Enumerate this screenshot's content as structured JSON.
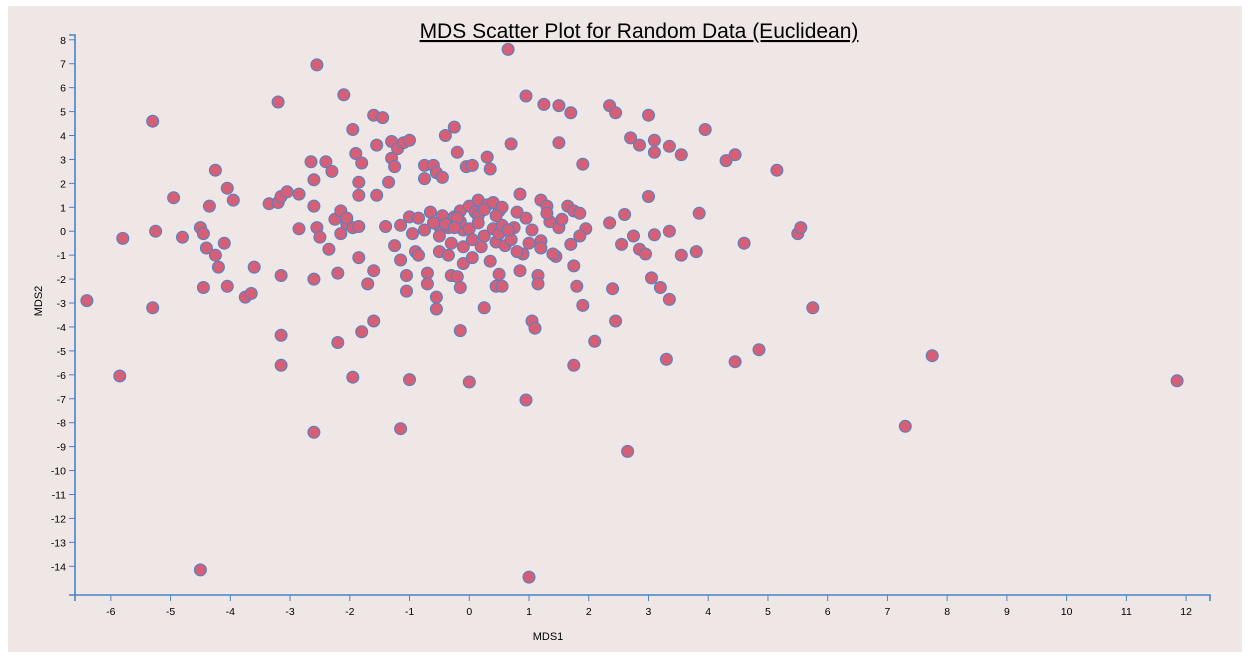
{
  "chart_data": {
    "type": "scatter",
    "title": "MDS Scatter Plot for Random Data (Euclidean)",
    "xlabel": "MDS1",
    "ylabel": "MDS2",
    "xlim": [
      -6.6,
      12.4
    ],
    "ylim": [
      -15.2,
      8.2
    ],
    "xticks": [
      "-6",
      "-5",
      "-4",
      "-3",
      "-2",
      "-1",
      "0",
      "1",
      "2",
      "3",
      "4",
      "5",
      "6",
      "7",
      "8",
      "9",
      "10",
      "11",
      "12"
    ],
    "yticks": [
      "8",
      "7",
      "6",
      "5",
      "4",
      "3",
      "2",
      "1",
      "0",
      "-1",
      "-2",
      "-3",
      "-4",
      "-5",
      "-6",
      "-7",
      "-8",
      "-9",
      "-10",
      "-11",
      "-12",
      "-13",
      "-14"
    ],
    "grid": false,
    "colors": {
      "point_fill": "#d65f78",
      "point_stroke": "#4a84c6",
      "axis": "#4a84c6",
      "background": "#efe6e6"
    },
    "points": [
      [
        -6.4,
        -2.9
      ],
      [
        -5.8,
        -0.3
      ],
      [
        -5.85,
        -6.05
      ],
      [
        -5.3,
        4.6
      ],
      [
        -5.25,
        0.0
      ],
      [
        -5.3,
        -3.2
      ],
      [
        -4.95,
        1.4
      ],
      [
        -4.8,
        -0.25
      ],
      [
        -4.5,
        0.15
      ],
      [
        -4.45,
        -0.1
      ],
      [
        -4.4,
        -0.7
      ],
      [
        -4.35,
        1.05
      ],
      [
        -4.25,
        2.55
      ],
      [
        -4.2,
        -1.5
      ],
      [
        -4.1,
        -0.5
      ],
      [
        -4.05,
        1.8
      ],
      [
        -3.95,
        1.3
      ],
      [
        -4.25,
        -1.0
      ],
      [
        -4.5,
        -14.15
      ],
      [
        -4.45,
        -2.35
      ],
      [
        -4.05,
        -2.3
      ],
      [
        -3.75,
        -2.75
      ],
      [
        -3.65,
        -2.6
      ],
      [
        -3.6,
        -1.5
      ],
      [
        -3.35,
        1.15
      ],
      [
        -3.2,
        1.2
      ],
      [
        -3.15,
        1.45
      ],
      [
        -3.05,
        1.65
      ],
      [
        -2.85,
        1.55
      ],
      [
        -3.2,
        5.4
      ],
      [
        -3.15,
        -1.85
      ],
      [
        -3.15,
        -4.35
      ],
      [
        -3.15,
        -5.6
      ],
      [
        -2.85,
        0.1
      ],
      [
        -2.65,
        2.9
      ],
      [
        -2.6,
        2.15
      ],
      [
        -2.6,
        1.05
      ],
      [
        -2.55,
        0.15
      ],
      [
        -2.5,
        -0.25
      ],
      [
        -2.6,
        -2.0
      ],
      [
        -2.55,
        6.95
      ],
      [
        -2.4,
        2.9
      ],
      [
        -2.35,
        -0.75
      ],
      [
        -2.3,
        2.5
      ],
      [
        -2.25,
        0.5
      ],
      [
        -2.2,
        -1.75
      ],
      [
        -2.2,
        -4.65
      ],
      [
        -2.15,
        0.85
      ],
      [
        -2.1,
        5.7
      ],
      [
        -2.05,
        0.3
      ],
      [
        -1.95,
        4.25
      ],
      [
        -1.95,
        0.15
      ],
      [
        -1.9,
        3.25
      ],
      [
        -1.85,
        2.05
      ],
      [
        -1.8,
        2.85
      ],
      [
        -1.85,
        1.5
      ],
      [
        -1.85,
        0.2
      ],
      [
        -1.85,
        -1.1
      ],
      [
        -1.7,
        -2.2
      ],
      [
        -1.6,
        -1.65
      ],
      [
        -1.55,
        3.6
      ],
      [
        -1.6,
        4.85
      ],
      [
        -1.55,
        1.5
      ],
      [
        -1.45,
        4.75
      ],
      [
        -1.35,
        2.05
      ],
      [
        -1.3,
        3.05
      ],
      [
        -1.3,
        3.75
      ],
      [
        -1.25,
        2.7
      ],
      [
        -1.2,
        3.45
      ],
      [
        -1.15,
        0.25
      ],
      [
        -1.1,
        3.7
      ],
      [
        -1.0,
        3.8
      ],
      [
        -1.0,
        0.6
      ],
      [
        -0.95,
        -0.1
      ],
      [
        -0.9,
        -0.85
      ],
      [
        -0.85,
        0.55
      ],
      [
        -0.75,
        2.75
      ],
      [
        -0.75,
        2.2
      ],
      [
        -0.7,
        -1.75
      ],
      [
        -0.7,
        -2.2
      ],
      [
        -0.65,
        0.8
      ],
      [
        -0.6,
        2.75
      ],
      [
        -0.55,
        2.45
      ],
      [
        -0.5,
        0.2
      ],
      [
        -0.5,
        -0.2
      ],
      [
        -0.5,
        -0.85
      ],
      [
        -0.45,
        0.65
      ],
      [
        -0.45,
        2.25
      ],
      [
        -0.4,
        4.0
      ],
      [
        -0.35,
        0.15
      ],
      [
        -0.3,
        -0.5
      ],
      [
        -0.3,
        -1.85
      ],
      [
        -0.25,
        4.35
      ],
      [
        -0.25,
        0.6
      ],
      [
        -0.2,
        3.3
      ],
      [
        -0.2,
        -1.9
      ],
      [
        -0.15,
        0.85
      ],
      [
        -0.1,
        0.05
      ],
      [
        -0.1,
        -0.65
      ],
      [
        -0.1,
        -1.35
      ],
      [
        -0.05,
        2.7
      ],
      [
        0.0,
        1.05
      ],
      [
        0.0,
        0.1
      ],
      [
        0.05,
        2.75
      ],
      [
        0.05,
        -1.1
      ],
      [
        0.1,
        0.8
      ],
      [
        0.15,
        1.3
      ],
      [
        0.2,
        -0.65
      ],
      [
        0.3,
        3.1
      ],
      [
        0.3,
        1.1
      ],
      [
        0.35,
        2.6
      ],
      [
        0.4,
        0.1
      ],
      [
        0.45,
        -0.45
      ],
      [
        0.45,
        -2.3
      ],
      [
        0.5,
        0.85
      ],
      [
        0.5,
        -0.1
      ],
      [
        0.5,
        -1.8
      ],
      [
        0.55,
        -2.3
      ],
      [
        0.6,
        -0.6
      ],
      [
        0.65,
        7.6
      ],
      [
        0.7,
        3.65
      ],
      [
        0.75,
        0.15
      ],
      [
        0.8,
        0.8
      ],
      [
        0.85,
        1.55
      ],
      [
        0.85,
        -1.65
      ],
      [
        0.9,
        -0.95
      ],
      [
        0.95,
        5.65
      ],
      [
        1.0,
        -0.5
      ],
      [
        1.05,
        -3.75
      ],
      [
        1.1,
        -4.05
      ],
      [
        1.15,
        -1.85
      ],
      [
        1.2,
        1.3
      ],
      [
        1.2,
        -0.4
      ],
      [
        1.25,
        5.3
      ],
      [
        1.3,
        1.05
      ],
      [
        1.35,
        0.4
      ],
      [
        1.45,
        -1.05
      ],
      [
        1.5,
        3.7
      ],
      [
        1.5,
        5.25
      ],
      [
        1.5,
        0.15
      ],
      [
        1.65,
        1.05
      ],
      [
        1.7,
        4.95
      ],
      [
        1.7,
        -0.55
      ],
      [
        1.75,
        0.85
      ],
      [
        1.75,
        -1.45
      ],
      [
        1.8,
        -2.3
      ],
      [
        1.75,
        -5.6
      ],
      [
        1.85,
        0.75
      ],
      [
        1.9,
        2.8
      ],
      [
        1.95,
        0.1
      ],
      [
        1.9,
        -3.1
      ],
      [
        2.1,
        -4.6
      ],
      [
        2.35,
        5.25
      ],
      [
        2.45,
        4.95
      ],
      [
        2.35,
        0.35
      ],
      [
        2.4,
        -2.4
      ],
      [
        2.45,
        -3.75
      ],
      [
        2.55,
        -0.55
      ],
      [
        2.6,
        0.7
      ],
      [
        2.7,
        3.9
      ],
      [
        2.75,
        -0.2
      ],
      [
        2.85,
        3.6
      ],
      [
        2.85,
        -0.75
      ],
      [
        2.95,
        -0.95
      ],
      [
        3.0,
        4.85
      ],
      [
        3.0,
        1.45
      ],
      [
        3.05,
        -1.95
      ],
      [
        3.1,
        3.3
      ],
      [
        3.1,
        3.8
      ],
      [
        3.1,
        -0.15
      ],
      [
        3.2,
        -2.35
      ],
      [
        3.3,
        -5.35
      ],
      [
        3.35,
        3.55
      ],
      [
        3.35,
        0.0
      ],
      [
        3.35,
        -2.85
      ],
      [
        3.55,
        3.2
      ],
      [
        3.55,
        -1.0
      ],
      [
        3.8,
        -0.85
      ],
      [
        3.85,
        0.75
      ],
      [
        3.95,
        4.25
      ],
      [
        4.3,
        2.95
      ],
      [
        4.45,
        3.2
      ],
      [
        4.45,
        -5.45
      ],
      [
        4.6,
        -0.5
      ],
      [
        4.85,
        -4.95
      ],
      [
        5.15,
        2.55
      ],
      [
        5.5,
        -0.1
      ],
      [
        5.55,
        0.15
      ],
      [
        5.75,
        -3.2
      ],
      [
        7.3,
        -8.15
      ],
      [
        7.75,
        -5.2
      ],
      [
        11.85,
        -6.25
      ],
      [
        -1.95,
        -6.1
      ],
      [
        -1.8,
        -4.2
      ],
      [
        -1.6,
        -3.75
      ],
      [
        -1.15,
        -1.2
      ],
      [
        -1.05,
        -2.5
      ],
      [
        -1.0,
        -6.2
      ],
      [
        -1.15,
        -8.25
      ],
      [
        -2.6,
        -8.4
      ],
      [
        -0.15,
        -2.35
      ],
      [
        -0.15,
        -4.15
      ],
      [
        0.0,
        -6.3
      ],
      [
        0.25,
        -3.2
      ],
      [
        0.95,
        -7.05
      ],
      [
        1.0,
        -14.45
      ],
      [
        2.65,
        -9.2
      ],
      [
        -0.55,
        -2.75
      ],
      [
        -0.55,
        -3.25
      ],
      [
        -0.15,
        0.4
      ],
      [
        0.15,
        0.65
      ],
      [
        0.55,
        0.25
      ],
      [
        0.7,
        -0.35
      ],
      [
        0.95,
        0.55
      ],
      [
        1.05,
        0.05
      ],
      [
        1.15,
        -2.2
      ],
      [
        1.3,
        0.75
      ],
      [
        1.4,
        -0.95
      ],
      [
        -0.75,
        0.05
      ],
      [
        -0.6,
        0.35
      ],
      [
        -0.35,
        -1.0
      ],
      [
        -0.2,
        0.55
      ],
      [
        0.05,
        -0.35
      ],
      [
        0.25,
        0.9
      ],
      [
        0.4,
        1.2
      ],
      [
        0.55,
        1.0
      ],
      [
        0.8,
        -0.85
      ],
      [
        1.2,
        -0.7
      ],
      [
        1.55,
        0.5
      ],
      [
        1.85,
        -0.2
      ],
      [
        -1.25,
        -0.6
      ],
      [
        -1.05,
        -1.85
      ],
      [
        -0.85,
        -1.0
      ],
      [
        -0.4,
        0.3
      ],
      [
        0.25,
        -0.2
      ],
      [
        0.35,
        -1.25
      ],
      [
        0.65,
        0.05
      ],
      [
        -2.15,
        -0.1
      ],
      [
        -2.05,
        0.55
      ],
      [
        -1.4,
        0.2
      ],
      [
        -0.25,
        0.15
      ],
      [
        0.15,
        0.35
      ],
      [
        0.45,
        0.65
      ]
    ]
  }
}
